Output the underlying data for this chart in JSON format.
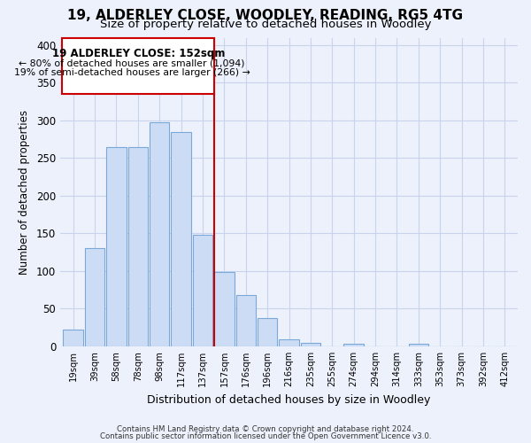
{
  "title": "19, ALDERLEY CLOSE, WOODLEY, READING, RG5 4TG",
  "subtitle": "Size of property relative to detached houses in Woodley",
  "xlabel": "Distribution of detached houses by size in Woodley",
  "ylabel": "Number of detached properties",
  "bar_labels": [
    "19sqm",
    "39sqm",
    "58sqm",
    "78sqm",
    "98sqm",
    "117sqm",
    "137sqm",
    "157sqm",
    "176sqm",
    "196sqm",
    "216sqm",
    "235sqm",
    "255sqm",
    "274sqm",
    "294sqm",
    "314sqm",
    "333sqm",
    "353sqm",
    "373sqm",
    "392sqm",
    "412sqm"
  ],
  "bar_values": [
    22,
    130,
    265,
    265,
    298,
    285,
    148,
    99,
    68,
    37,
    9,
    5,
    0,
    3,
    0,
    0,
    3,
    0,
    0,
    0,
    0
  ],
  "bar_color": "#ccdcf5",
  "bar_edge_color": "#7aa8d8",
  "vline_color": "#cc0000",
  "annotation_title": "19 ALDERLEY CLOSE: 152sqm",
  "annotation_line1": "← 80% of detached houses are smaller (1,094)",
  "annotation_line2": "19% of semi-detached houses are larger (266) →",
  "annotation_box_color": "#ffffff",
  "annotation_box_edge": "#cc0000",
  "ylim": [
    0,
    410
  ],
  "yticks": [
    0,
    50,
    100,
    150,
    200,
    250,
    300,
    350,
    400
  ],
  "footer1": "Contains HM Land Registry data © Crown copyright and database right 2024.",
  "footer2": "Contains public sector information licensed under the Open Government Licence v3.0.",
  "bg_color": "#edf1fb",
  "grid_color": "#c8d4ee",
  "title_fontsize": 11,
  "subtitle_fontsize": 9.5
}
